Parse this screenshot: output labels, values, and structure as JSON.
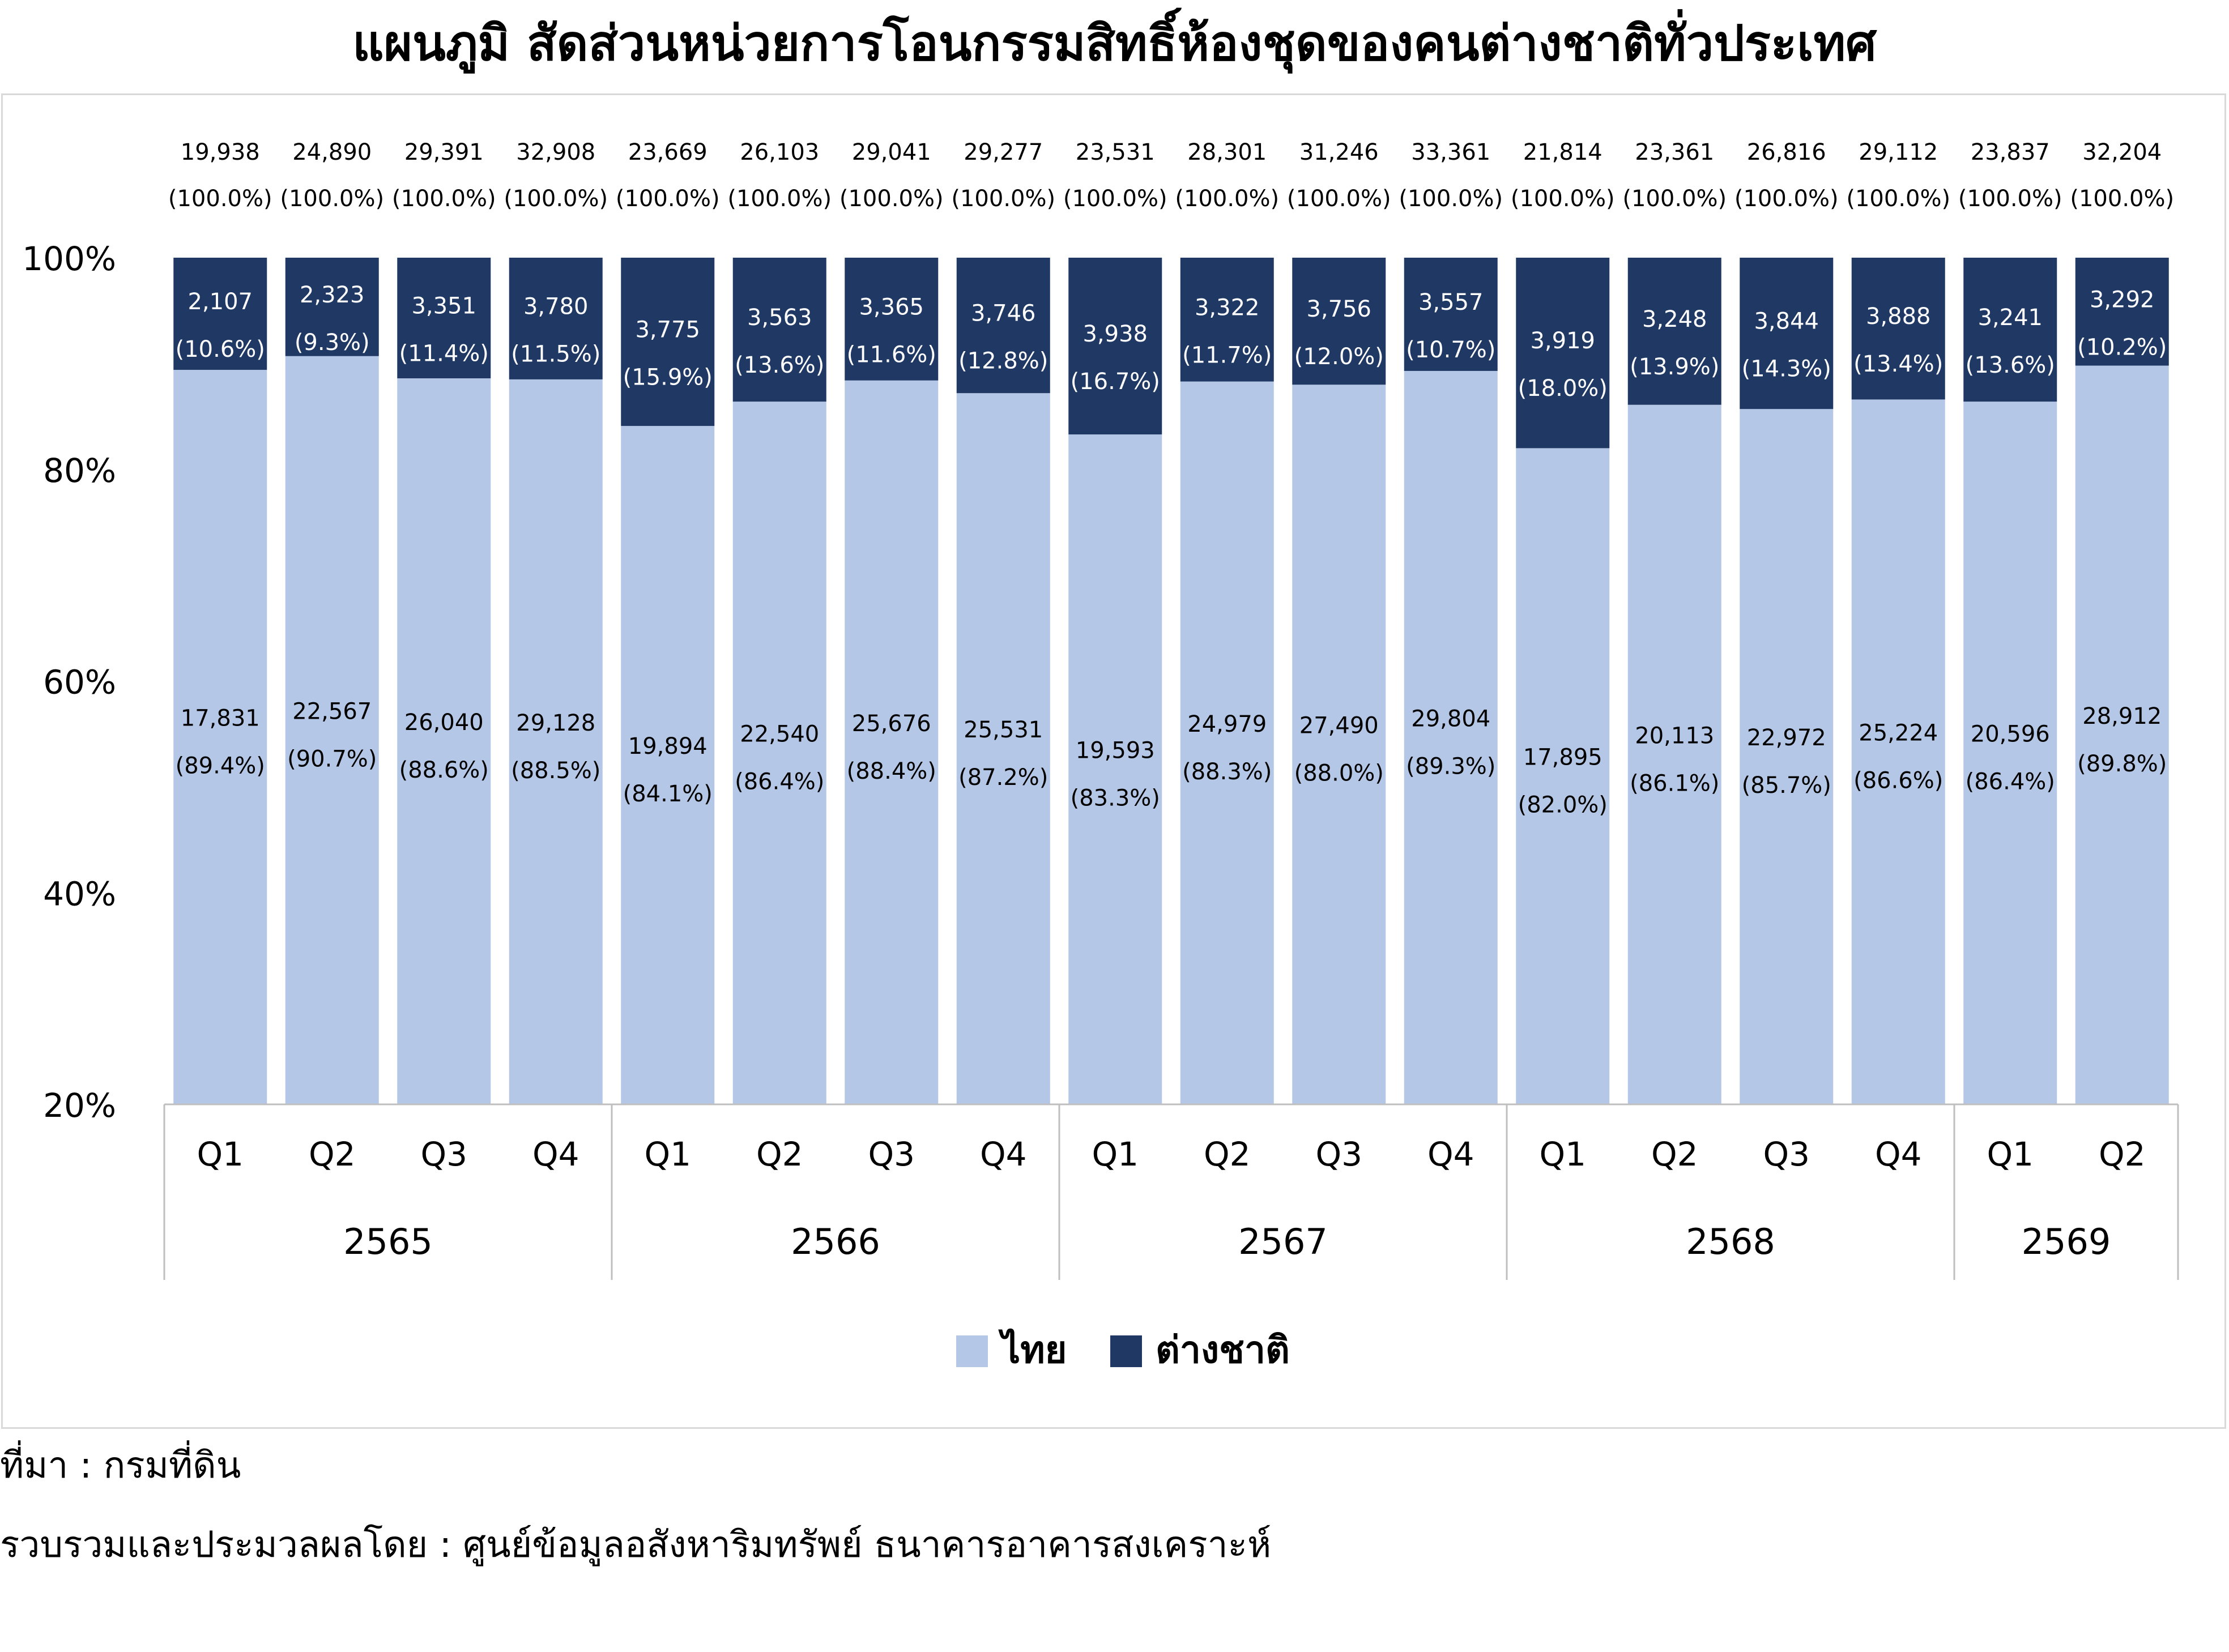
{
  "title": "แผนภูมิ สัดส่วนหน่วยการโอนกรรมสิทธิ์ห้องชุดของคนต่างชาติทั่วประเทศ",
  "footer": {
    "source": "ที่มา : กรมที่ดิน",
    "compiled_by": "รวบรวมและประมวลผลโดย : ศูนย์ข้อมูลอสังหาริมทรัพย์ ธนาคารอาคารสงเคราะห์"
  },
  "colors": {
    "thai": "#b4c7e7",
    "foreign": "#1f3864",
    "frame": "#d9d9d9",
    "axis": "#bfbfbf"
  },
  "chart_data": {
    "type": "bar",
    "stacked": "percent",
    "title": "แผนภูมิ สัดส่วนหน่วยการโอนกรรมสิทธิ์ห้องชุดของคนต่างชาติทั่วประเทศ",
    "ylim": [
      20,
      100
    ],
    "yticks": [
      "100%",
      "80%",
      "60%",
      "40%",
      "20%"
    ],
    "ytick_values": [
      100,
      80,
      60,
      40,
      20
    ],
    "legend_position": "bottom",
    "years": [
      {
        "label": "2565",
        "count": 4
      },
      {
        "label": "2566",
        "count": 4
      },
      {
        "label": "2567",
        "count": 4
      },
      {
        "label": "2568",
        "count": 4
      },
      {
        "label": "2569",
        "count": 2
      }
    ],
    "categories": [
      "Q1",
      "Q2",
      "Q3",
      "Q4",
      "Q1",
      "Q2",
      "Q3",
      "Q4",
      "Q1",
      "Q2",
      "Q3",
      "Q4",
      "Q1",
      "Q2",
      "Q3",
      "Q4",
      "Q1",
      "Q2"
    ],
    "totals": [
      "19,938",
      "24,890",
      "29,391",
      "32,908",
      "23,669",
      "26,103",
      "29,041",
      "29,277",
      "23,531",
      "28,301",
      "31,246",
      "33,361",
      "21,814",
      "23,361",
      "26,816",
      "29,112",
      "23,837",
      "32,204"
    ],
    "total_pct": "(100.0%)",
    "series": [
      {
        "name": "ไทย",
        "values": [
          17831,
          22567,
          26040,
          29128,
          19894,
          22540,
          25676,
          25531,
          19593,
          24979,
          27490,
          29804,
          17895,
          20113,
          22972,
          25224,
          20596,
          28912
        ],
        "labels": [
          "17,831",
          "22,567",
          "26,040",
          "29,128",
          "19,894",
          "22,540",
          "25,676",
          "25,531",
          "19,593",
          "24,979",
          "27,490",
          "29,804",
          "17,895",
          "20,113",
          "22,972",
          "25,224",
          "20,596",
          "28,912"
        ],
        "percent": [
          89.4,
          90.7,
          88.6,
          88.5,
          84.1,
          86.4,
          88.4,
          87.2,
          83.3,
          88.3,
          88.0,
          89.3,
          82.0,
          86.1,
          85.7,
          86.6,
          86.4,
          89.8
        ],
        "percent_labels": [
          "(89.4%)",
          "(90.7%)",
          "(88.6%)",
          "(88.5%)",
          "(84.1%)",
          "(86.4%)",
          "(88.4%)",
          "(87.2%)",
          "(83.3%)",
          "(88.3%)",
          "(88.0%)",
          "(89.3%)",
          "(82.0%)",
          "(86.1%)",
          "(85.7%)",
          "(86.6%)",
          "(86.4%)",
          "(89.8%)"
        ]
      },
      {
        "name": "ต่างชาติ",
        "values": [
          2107,
          2323,
          3351,
          3780,
          3775,
          3563,
          3365,
          3746,
          3938,
          3322,
          3756,
          3557,
          3919,
          3248,
          3844,
          3888,
          3241,
          3292
        ],
        "labels": [
          "2,107",
          "2,323",
          "3,351",
          "3,780",
          "3,775",
          "3,563",
          "3,365",
          "3,746",
          "3,938",
          "3,322",
          "3,756",
          "3,557",
          "3,919",
          "3,248",
          "3,844",
          "3,888",
          "3,241",
          "3,292"
        ],
        "percent": [
          10.6,
          9.3,
          11.4,
          11.5,
          15.9,
          13.6,
          11.6,
          12.8,
          16.7,
          11.7,
          12.0,
          10.7,
          18.0,
          13.9,
          14.3,
          13.4,
          13.6,
          10.2
        ],
        "percent_labels": [
          "(10.6%)",
          "(9.3%)",
          "(11.4%)",
          "(11.5%)",
          "(15.9%)",
          "(13.6%)",
          "(11.6%)",
          "(12.8%)",
          "(16.7%)",
          "(11.7%)",
          "(12.0%)",
          "(10.7%)",
          "(18.0%)",
          "(13.9%)",
          "(14.3%)",
          "(13.4%)",
          "(13.6%)",
          "(10.2%)"
        ]
      }
    ]
  }
}
